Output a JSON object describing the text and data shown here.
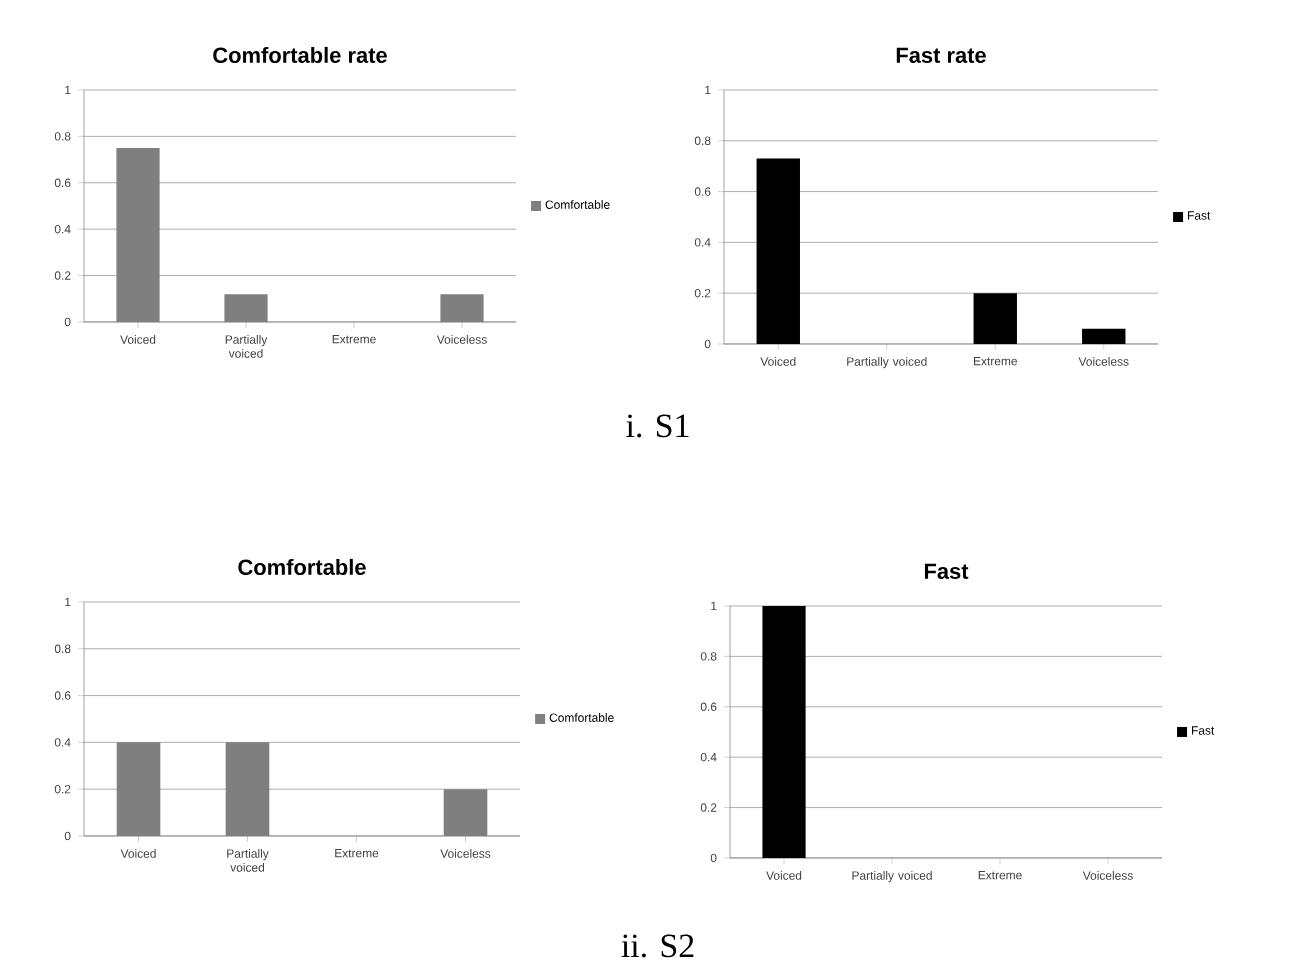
{
  "chart_data": [
    {
      "type": "bar",
      "title": "Comfortable rate",
      "categories": [
        "Voiced",
        "Partially voiced",
        "Extreme",
        "Voiceless"
      ],
      "series": [
        {
          "name": "Comfortable",
          "color": "#7f7f7f",
          "values": [
            0.75,
            0.12,
            0,
            0.12
          ]
        }
      ],
      "ylim": [
        0,
        1
      ],
      "yticks": [
        0,
        0.2,
        0.4,
        0.6,
        0.8,
        1
      ],
      "grid": "y",
      "legend": "right",
      "annotations": [
        "i. S1"
      ]
    },
    {
      "type": "bar",
      "title": "Fast rate",
      "categories": [
        "Voiced",
        "Partially voiced",
        "Extreme",
        "Voiceless"
      ],
      "series": [
        {
          "name": "Fast",
          "color": "#000000",
          "values": [
            0.73,
            0,
            0.2,
            0.06
          ]
        }
      ],
      "ylim": [
        0,
        1
      ],
      "yticks": [
        0,
        0.2,
        0.4,
        0.6,
        0.8,
        1
      ],
      "grid": "y",
      "legend": "right"
    },
    {
      "type": "bar",
      "title": "Comfortable",
      "categories": [
        "Voiced",
        "Partially voiced",
        "Extreme",
        "Voiceless"
      ],
      "series": [
        {
          "name": "Comfortable",
          "color": "#7f7f7f",
          "values": [
            0.4,
            0.4,
            0,
            0.2
          ]
        }
      ],
      "ylim": [
        0,
        1
      ],
      "yticks": [
        0,
        0.2,
        0.4,
        0.6,
        0.8,
        1
      ],
      "grid": "y",
      "legend": "right",
      "annotations": [
        "ii. S2"
      ]
    },
    {
      "type": "bar",
      "title": "Fast",
      "categories": [
        "Voiced",
        "Partially voiced",
        "Extreme",
        "Voiceless"
      ],
      "series": [
        {
          "name": "Fast",
          "color": "#000000",
          "values": [
            1,
            0,
            0,
            0
          ]
        }
      ],
      "ylim": [
        0,
        1
      ],
      "yticks": [
        0,
        0.2,
        0.4,
        0.6,
        0.8,
        1
      ],
      "grid": "y",
      "legend": "right"
    }
  ]
}
